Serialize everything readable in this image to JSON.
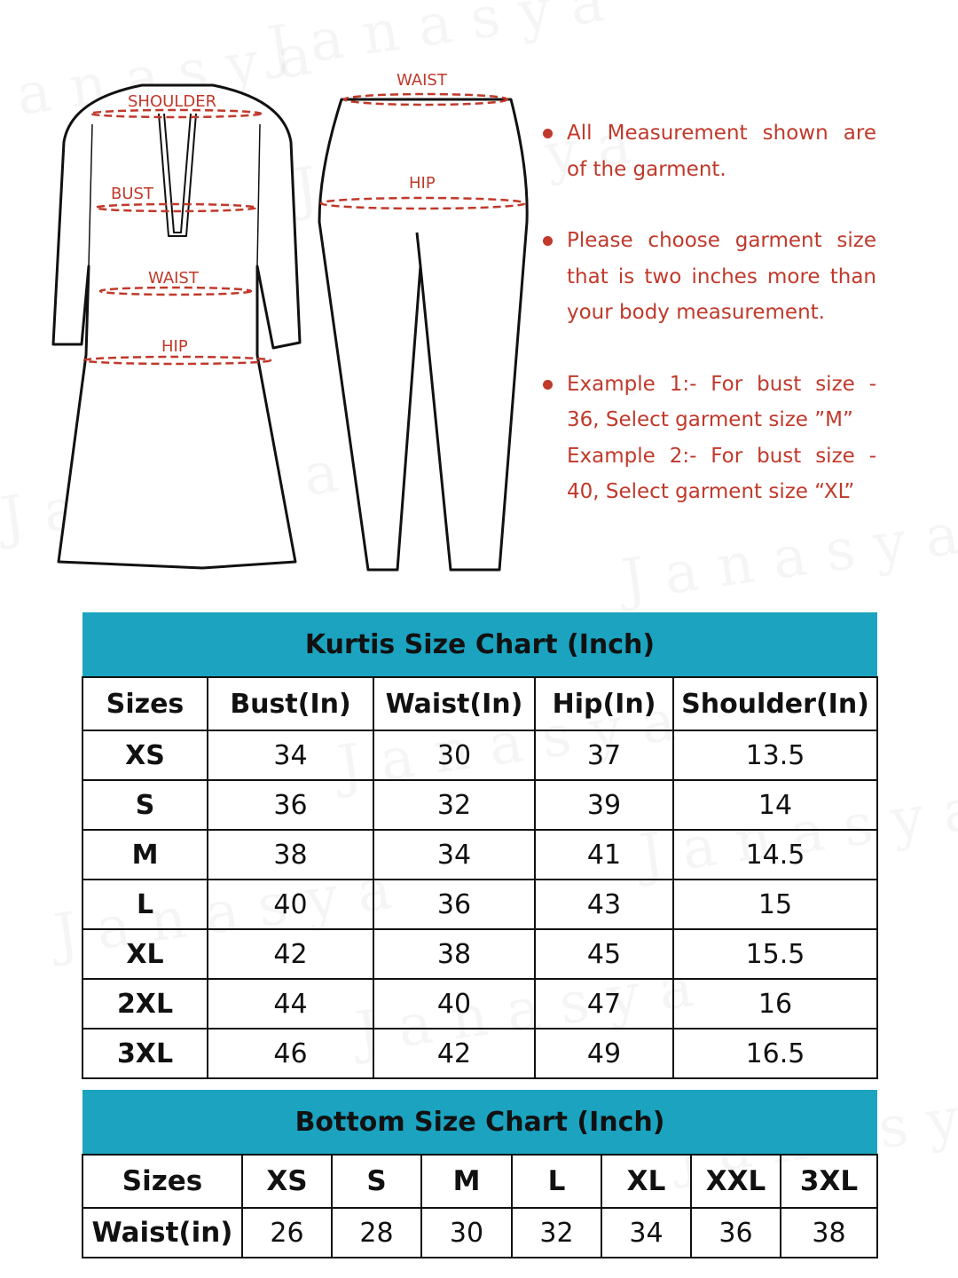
{
  "brand_watermark": "Janasya",
  "colors": {
    "accent_teal": "#1ba3c0",
    "text_red": "#c0392b",
    "border": "#111111"
  },
  "diagram": {
    "kurta_labels": [
      "SHOULDER",
      "BUST",
      "WAIST",
      "HIP"
    ],
    "pants_labels": [
      "WAIST",
      "HIP"
    ]
  },
  "notes": [
    {
      "lines": [
        "All Measurement shown are of the garment."
      ]
    },
    {
      "lines": [
        "Please choose garment size that is two inches more than your body measurement."
      ]
    },
    {
      "lines": [
        "Example 1:- For bust size - 36, Select garment size ”M”",
        "Example 2:- For bust size - 40, Select garment size  “XL”"
      ]
    }
  ],
  "kurtis_chart": {
    "title": "Kurtis Size Chart (Inch)",
    "headers": [
      "Sizes",
      "Bust(In)",
      "Waist(In)",
      "Hip(In)",
      "Shoulder(In)"
    ],
    "rows": [
      [
        "XS",
        "34",
        "30",
        "37",
        "13.5"
      ],
      [
        "S",
        "36",
        "32",
        "39",
        "14"
      ],
      [
        "M",
        "38",
        "34",
        "41",
        "14.5"
      ],
      [
        "L",
        "40",
        "36",
        "43",
        "15"
      ],
      [
        "XL",
        "42",
        "38",
        "45",
        "15.5"
      ],
      [
        "2XL",
        "44",
        "40",
        "47",
        "16"
      ],
      [
        "3XL",
        "46",
        "42",
        "49",
        "16.5"
      ]
    ]
  },
  "bottom_chart": {
    "title": "Bottom Size Chart (Inch)",
    "sizes_label": "Sizes",
    "sizes": [
      "XS",
      "S",
      "M",
      "L",
      "XL",
      "XXL",
      "3XL"
    ],
    "waist_label": "Waist(in)",
    "waist": [
      "26",
      "28",
      "30",
      "32",
      "34",
      "36",
      "38"
    ]
  }
}
